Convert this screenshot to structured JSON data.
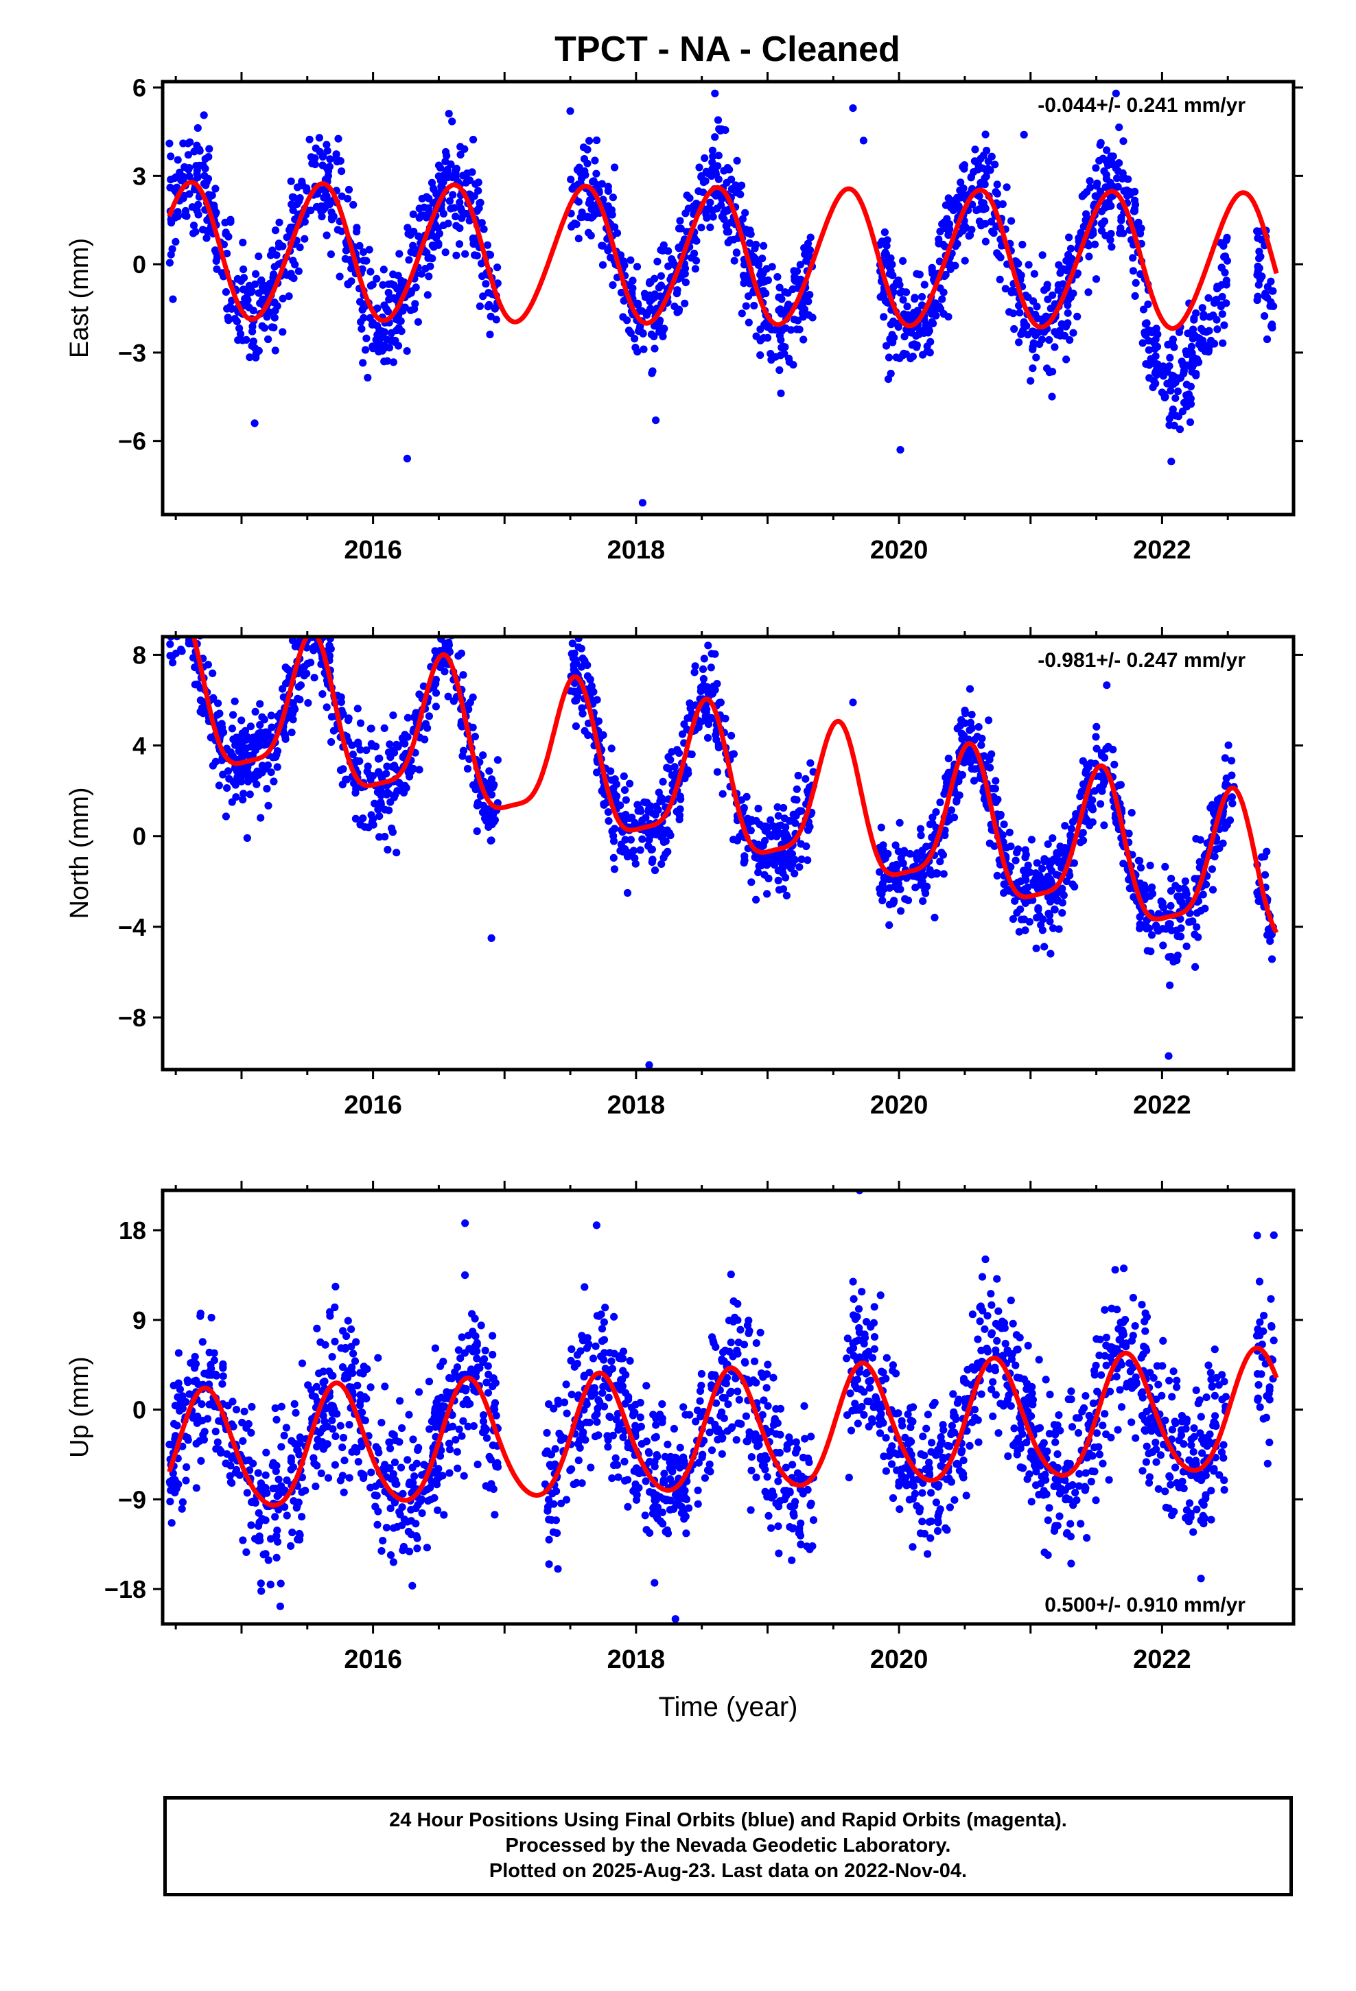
{
  "title": "TPCT  - NA - Cleaned",
  "footer": {
    "line1": "24 Hour Positions Using Final Orbits (blue) and Rapid Orbits (magenta).",
    "line2": "Processed by the Nevada Geodetic Laboratory.",
    "line3": "Plotted on 2025-Aug-23. Last data on 2022-Nov-04."
  },
  "colors": {
    "points": "#0000ff",
    "fit": "#ff0000",
    "axes": "#000000"
  },
  "chart_data": [
    {
      "type": "scatter",
      "panel": "east",
      "ylabel": "East (mm)",
      "xlabel": "",
      "xlim": [
        2014.4,
        2023.0
      ],
      "ylim": [
        -8.5,
        6.2
      ],
      "yticks": [
        6,
        3,
        0,
        -3,
        -6
      ],
      "ytick_labels": [
        "6",
        "3",
        "0",
        "−3",
        "−6"
      ],
      "xticks": [
        2016,
        2018,
        2020,
        2022
      ],
      "xtick_labels": [
        "2016",
        "2018",
        "2020",
        "2022"
      ],
      "rate_label": "-0.044+/- 0.241 mm/yr",
      "rate_position": "top-right",
      "fit": {
        "rate": -0.044,
        "offset": 0.25,
        "annual_amp": 2.3,
        "annual_peak": 0.6,
        "semi_amp": 0.15,
        "semi_peak": 0.2
      },
      "data_spans": [
        [
          2014.45,
          2016.95
        ],
        [
          2017.5,
          2019.35
        ],
        [
          2019.85,
          2021.9
        ],
        [
          2021.9,
          2022.5
        ],
        [
          2022.72,
          2022.85
        ]
      ],
      "data_density_per_year": 280,
      "scatter_sigma": 0.9,
      "late_anomaly": {
        "from": 2021.85,
        "shift": -2.0
      },
      "series": [
        {
          "name": "",
          "x": [
            2015.1,
            2016.26,
            2017.5,
            2018.05,
            2018.15,
            2018.6,
            2019.65,
            2019.73,
            2020.01,
            2020.95,
            2021.65,
            2022.07
          ],
          "y": [
            -5.4,
            -6.6,
            5.2,
            -8.1,
            -5.3,
            5.8,
            5.3,
            4.2,
            -6.3,
            4.4,
            5.8,
            -6.7
          ]
        }
      ]
    },
    {
      "type": "scatter",
      "panel": "north",
      "ylabel": "North (mm)",
      "xlabel": "",
      "xlim": [
        2014.4,
        2023.0
      ],
      "ylim": [
        -10.3,
        8.8
      ],
      "yticks": [
        8,
        4,
        0,
        -4,
        -8
      ],
      "ytick_labels": [
        "8",
        "4",
        "0",
        "−4",
        "−8"
      ],
      "xticks": [
        2016,
        2018,
        2020,
        2022
      ],
      "xtick_labels": [
        "2016",
        "2018",
        "2020",
        "2022"
      ],
      "rate_label": "-0.981+/- 0.247 mm/yr",
      "rate_position": "top-right",
      "fit": {
        "rate": -0.981,
        "offset": 2.2,
        "annual_amp": 3.1,
        "annual_peak": 0.53,
        "semi_amp": 0.8,
        "semi_peak": 0.05
      },
      "data_spans": [
        [
          2014.45,
          2016.95
        ],
        [
          2017.5,
          2019.35
        ],
        [
          2019.85,
          2022.55
        ],
        [
          2022.72,
          2022.85
        ]
      ],
      "data_density_per_year": 280,
      "scatter_sigma": 1.0,
      "series": [
        {
          "name": "",
          "x": [
            2014.6,
            2016.55,
            2016.9,
            2018.1,
            2018.55,
            2019.65,
            2022.05
          ],
          "y": [
            8.5,
            8.5,
            -4.5,
            -10.1,
            6.3,
            5.9,
            -9.7
          ]
        }
      ]
    },
    {
      "type": "scatter",
      "panel": "up",
      "ylabel": "Up (mm)",
      "xlabel": "Time (year)",
      "xlim": [
        2014.4,
        2023.0
      ],
      "ylim": [
        -21.5,
        22.0
      ],
      "yticks": [
        18,
        9,
        0,
        -9,
        -18
      ],
      "ytick_labels": [
        "18",
        "9",
        "0",
        "−9",
        "−18"
      ],
      "xticks": [
        2016,
        2018,
        2020,
        2022
      ],
      "xtick_labels": [
        "2016",
        "2018",
        "2020",
        "2022"
      ],
      "rate_label": "0.500+/- 0.910 mm/yr",
      "rate_position": "bottom-right",
      "fit": {
        "rate": 0.5,
        "offset": -2.5,
        "annual_amp": 6.0,
        "annual_peak": 0.73,
        "semi_amp": 0.6,
        "semi_peak": 0.2
      },
      "data_spans": [
        [
          2014.45,
          2016.95
        ],
        [
          2017.3,
          2019.35
        ],
        [
          2019.6,
          2022.5
        ],
        [
          2022.72,
          2022.85
        ]
      ],
      "data_density_per_year": 280,
      "scatter_sigma": 3.8,
      "series": [
        {
          "name": "",
          "x": [
            2015.15,
            2016.7,
            2017.7,
            2018.3,
            2019.7,
            2022.85
          ],
          "y": [
            -18.2,
            18.7,
            18.5,
            -21.0,
            22.0,
            17.5
          ]
        }
      ]
    }
  ]
}
